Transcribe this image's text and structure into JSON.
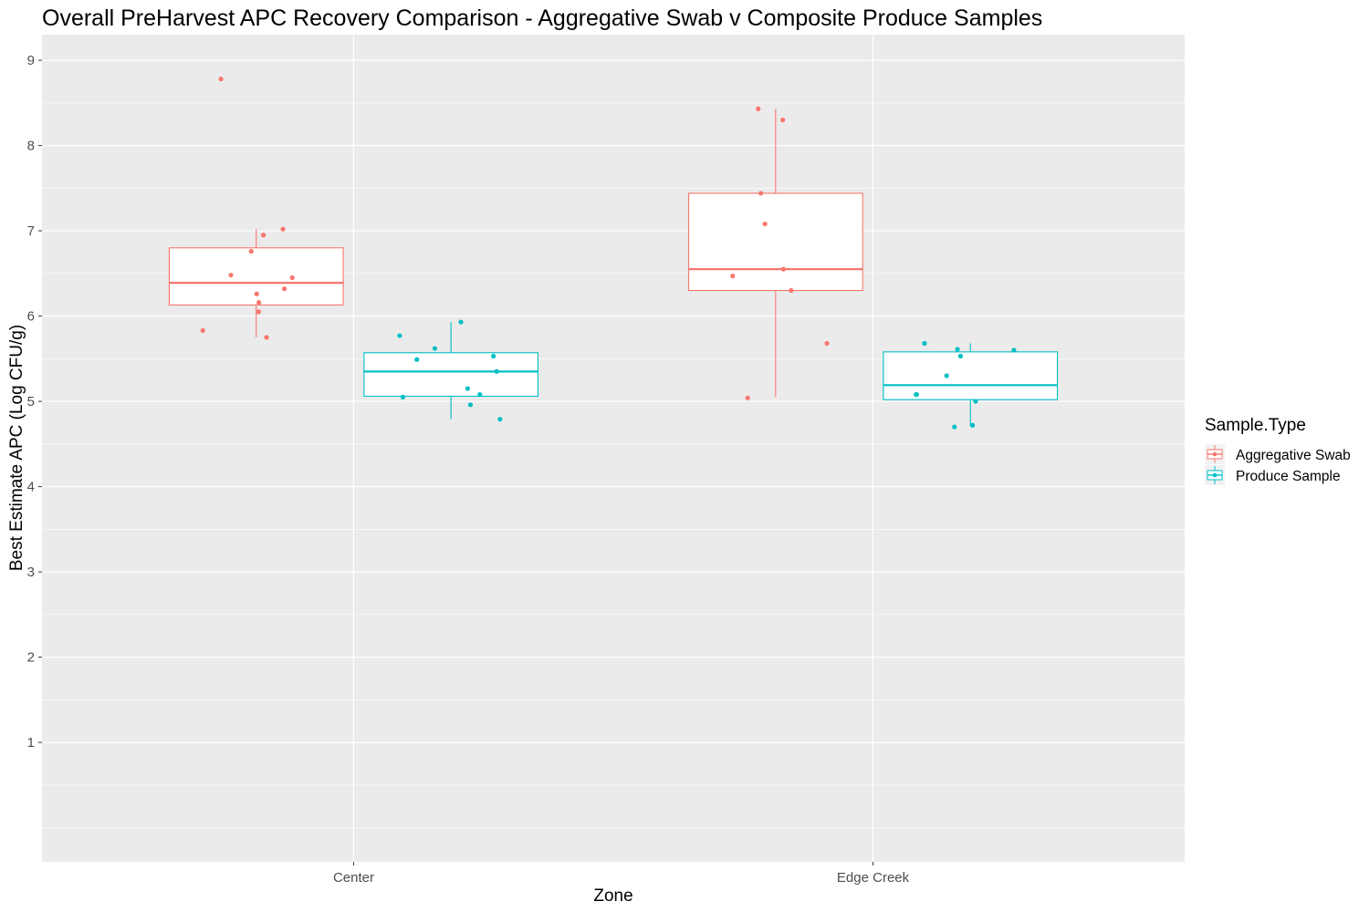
{
  "chart_data": {
    "type": "box",
    "title": "Overall PreHarvest APC Recovery Comparison - Aggregative Swab v Composite Produce Samples",
    "xlabel": "Zone",
    "ylabel": "Best Estimate APC (Log CFU/g)",
    "categories": [
      "Center",
      "Edge Creek"
    ],
    "y_ticks": [
      1,
      2,
      3,
      4,
      5,
      6,
      7,
      8,
      9
    ],
    "y_tick_labels": [
      "1",
      "2",
      "3",
      "4",
      "5",
      "6",
      "7",
      "8",
      "9"
    ],
    "ylim": [
      -0.4,
      9.3
    ],
    "grid": true,
    "legend": {
      "title": "Sample.Type",
      "position": "right",
      "entries": [
        "Aggregative Swab",
        "Produce Sample"
      ]
    },
    "series": [
      {
        "name": "Aggregative Swab",
        "color": "#F8766D",
        "boxes": [
          {
            "category": "Center",
            "whisker_low": 5.75,
            "q1": 6.13,
            "median": 6.39,
            "q3": 6.8,
            "whisker_high": 7.02,
            "points": [
              8.78,
              7.02,
              6.95,
              6.76,
              6.48,
              6.45,
              6.32,
              6.26,
              6.16,
              6.05,
              5.83,
              5.75
            ]
          },
          {
            "category": "Edge Creek",
            "whisker_low": 5.05,
            "q1": 6.3,
            "median": 6.55,
            "q3": 7.44,
            "whisker_high": 8.43,
            "points": [
              8.43,
              8.3,
              7.44,
              7.08,
              6.55,
              6.47,
              6.3,
              5.68,
              5.04
            ]
          }
        ]
      },
      {
        "name": "Produce Sample",
        "color": "#00BFC4",
        "boxes": [
          {
            "category": "Center",
            "whisker_low": 4.79,
            "q1": 5.06,
            "median": 5.35,
            "q3": 5.57,
            "whisker_high": 5.93,
            "points": [
              5.93,
              5.77,
              5.62,
              5.53,
              5.49,
              5.35,
              5.15,
              5.08,
              5.05,
              4.96,
              4.79
            ]
          },
          {
            "category": "Edge Creek",
            "whisker_low": 4.71,
            "q1": 5.02,
            "median": 5.19,
            "q3": 5.58,
            "whisker_high": 5.68,
            "points": [
              5.68,
              5.61,
              5.6,
              5.53,
              5.3,
              5.08,
              5.08,
              5.0,
              4.72,
              4.7
            ]
          }
        ]
      }
    ]
  }
}
